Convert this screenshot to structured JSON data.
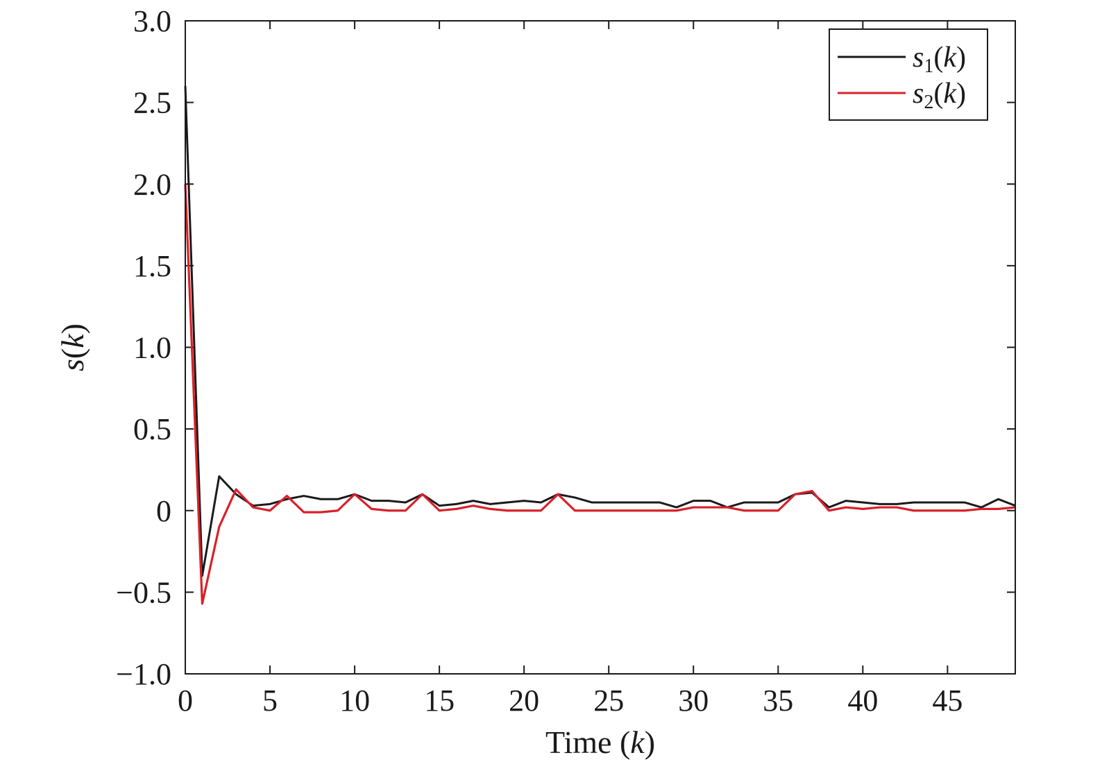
{
  "chart_data": {
    "type": "line",
    "xlabel": "Time (k)",
    "ylabel": "s(k)",
    "xlim": [
      0,
      49
    ],
    "ylim": [
      -1.0,
      3.0
    ],
    "x_ticks": [
      0,
      5,
      10,
      15,
      20,
      25,
      30,
      35,
      40,
      45
    ],
    "x_tick_labels": [
      "0",
      "5",
      "10",
      "15",
      "20",
      "25",
      "30",
      "35",
      "40",
      "45"
    ],
    "y_ticks": [
      -1.0,
      -0.5,
      0,
      0.5,
      1.0,
      1.5,
      2.0,
      2.5,
      3.0
    ],
    "y_tick_labels": [
      "−1.0",
      "−0.5",
      "0",
      "0.5",
      "1.0",
      "1.5",
      "2.0",
      "2.5",
      "3.0"
    ],
    "grid": false,
    "legend_position": "top-right",
    "x": [
      0,
      1,
      2,
      3,
      4,
      5,
      6,
      7,
      8,
      9,
      10,
      11,
      12,
      13,
      14,
      15,
      16,
      17,
      18,
      19,
      20,
      21,
      22,
      23,
      24,
      25,
      26,
      27,
      28,
      29,
      30,
      31,
      32,
      33,
      34,
      35,
      36,
      37,
      38,
      39,
      40,
      41,
      42,
      43,
      44,
      45,
      46,
      47,
      48,
      49
    ],
    "series": [
      {
        "name": "s1(k)",
        "legend_base": "s",
        "legend_sub": "1",
        "legend_arg": "(k)",
        "color": "#1a1a1a",
        "values": [
          2.6,
          -0.4,
          0.21,
          0.1,
          0.03,
          0.04,
          0.07,
          0.09,
          0.07,
          0.07,
          0.1,
          0.06,
          0.06,
          0.05,
          0.1,
          0.03,
          0.04,
          0.06,
          0.04,
          0.05,
          0.06,
          0.05,
          0.1,
          0.08,
          0.05,
          0.05,
          0.05,
          0.05,
          0.05,
          0.02,
          0.06,
          0.06,
          0.02,
          0.05,
          0.05,
          0.05,
          0.1,
          0.11,
          0.02,
          0.06,
          0.05,
          0.04,
          0.04,
          0.05,
          0.05,
          0.05,
          0.05,
          0.02,
          0.07,
          0.03
        ]
      },
      {
        "name": "s2(k)",
        "legend_base": "s",
        "legend_sub": "2",
        "legend_arg": "(k)",
        "color": "#d9202a",
        "values": [
          2.0,
          -0.57,
          -0.1,
          0.13,
          0.02,
          0.0,
          0.09,
          -0.01,
          -0.01,
          0.0,
          0.1,
          0.01,
          0.0,
          0.0,
          0.1,
          0.0,
          0.01,
          0.03,
          0.01,
          0.0,
          0.0,
          0.0,
          0.1,
          0.0,
          0.0,
          0.0,
          0.0,
          0.0,
          0.0,
          0.0,
          0.02,
          0.02,
          0.02,
          0.0,
          0.0,
          0.0,
          0.1,
          0.12,
          0.0,
          0.02,
          0.01,
          0.02,
          0.02,
          0.0,
          0.0,
          0.0,
          0.0,
          0.01,
          0.01,
          0.02
        ]
      }
    ]
  }
}
